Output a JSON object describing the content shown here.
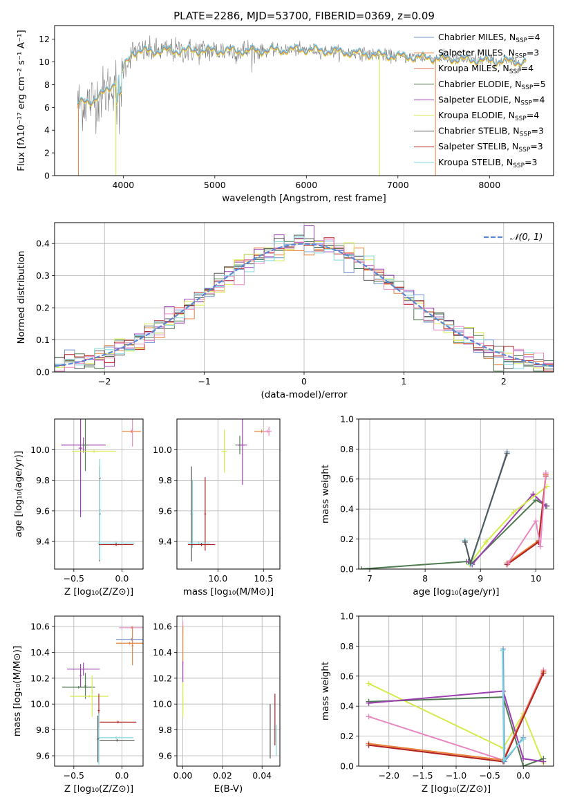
{
  "title": "PLATE=2286, MJD=53700, FIBERID=0369, z=0.09",
  "colors": {
    "Chabrier MILES": "#6f93cf",
    "Salpeter MILES": "#e8803a",
    "Kroupa MILES": "#e0785a",
    "Chabrier ELODIE": "#4f7a4f",
    "Salpeter ELODIE": "#9b3fb0",
    "Kroupa ELODIE": "#d6ea4a",
    "Chabrier STELIB": "#555555",
    "Salpeter STELIB": "#b22222",
    "Kroupa STELIB": "#7fd6dc",
    "Kroupa MILES weight": "#e887c0",
    "normal": "#5b86d6"
  },
  "chart_data": [
    {
      "name": "spectrum",
      "type": "line",
      "xlabel": "wavelength [Angstrom, rest frame]",
      "ylabel": "Flux [fλ10⁻¹⁷ erg cm⁻² s⁻¹ A⁻¹]",
      "xlim": [
        3250,
        8700
      ],
      "ylim": [
        0,
        13.2
      ],
      "xticks": [
        4000,
        5000,
        6000,
        7000,
        8000
      ],
      "yticks": [
        0,
        2,
        4,
        6,
        8,
        10,
        12
      ],
      "x_start": 3500,
      "x_end": 8400,
      "legend_position": "right",
      "legend": [
        {
          "label": "Chabrier MILES, N",
          "sub": "SSP",
          "suffix": "=4",
          "color": "Chabrier MILES"
        },
        {
          "label": "Salpeter MILES, N",
          "sub": "SSP",
          "suffix": "=3",
          "color": "Salpeter MILES"
        },
        {
          "label": "Kroupa MILES, N",
          "sub": "SSP",
          "suffix": "=4",
          "color": "Kroupa MILES"
        },
        {
          "label": "Chabrier ELODIE, N",
          "sub": "SSP",
          "suffix": "=5",
          "color": "Chabrier ELODIE"
        },
        {
          "label": "Salpeter ELODIE, N",
          "sub": "SSP",
          "suffix": "=4",
          "color": "Salpeter ELODIE"
        },
        {
          "label": "Kroupa ELODIE, N",
          "sub": "SSP",
          "suffix": "=4",
          "color": "Kroupa ELODIE"
        },
        {
          "label": "Chabrier STELIB, N",
          "sub": "SSP",
          "suffix": "=3",
          "color": "Chabrier STELIB"
        },
        {
          "label": "Salpeter STELIB, N",
          "sub": "SSP",
          "suffix": "=3",
          "color": "Salpeter STELIB"
        },
        {
          "label": "Kroupa STELIB, N",
          "sub": "SSP",
          "suffix": "=3",
          "color": "Kroupa STELIB"
        }
      ],
      "continuum": [
        [
          3500,
          6.3
        ],
        [
          3650,
          6.6
        ],
        [
          3800,
          7.3
        ],
        [
          3950,
          8.6
        ],
        [
          4100,
          10.9
        ],
        [
          4500,
          11.0
        ],
        [
          5000,
          11.0
        ],
        [
          5500,
          11.0
        ],
        [
          6000,
          11.1
        ],
        [
          6500,
          10.8
        ],
        [
          7000,
          10.5
        ],
        [
          7500,
          10.3
        ],
        [
          8000,
          10.1
        ],
        [
          8400,
          10.0
        ]
      ],
      "spikes": [
        {
          "x": 3510,
          "series": "Salpeter MILES"
        },
        {
          "x": 3920,
          "series": "Kroupa ELODIE"
        },
        {
          "x": 6800,
          "series": "Kroupa ELODIE"
        },
        {
          "x": 7410,
          "series": "Salpeter MILES"
        }
      ]
    },
    {
      "name": "residual-histogram",
      "type": "line",
      "xlabel": "(data-model)/error",
      "ylabel": "Normed distribution",
      "xlim": [
        -2.5,
        2.5
      ],
      "ylim": [
        0,
        0.465
      ],
      "xticks": [
        -2,
        -1,
        0,
        1,
        2
      ],
      "yticks": [
        0.0,
        0.1,
        0.2,
        0.3,
        0.4
      ],
      "grid": true,
      "legend_position": "top-right",
      "legend_label": "𝒩(0, 1)",
      "bin_width": 0.1,
      "series_colors": [
        "Chabrier MILES",
        "Salpeter MILES",
        "Chabrier ELODIE",
        "Salpeter ELODIE",
        "Kroupa ELODIE",
        "Chabrier STELIB",
        "Salpeter STELIB",
        "Kroupa STELIB",
        "Kroupa MILES weight"
      ]
    },
    {
      "name": "Z-age",
      "type": "scatter",
      "xlabel": "Z [log₁₀(Z/Z⊙)]",
      "ylabel": "age  [log₁₀(age/yr)]",
      "xlim": [
        -0.7,
        0.22
      ],
      "ylim": [
        9.22,
        10.2
      ],
      "xticks": [
        -0.5,
        0.0
      ],
      "yticks": [
        9.4,
        9.6,
        9.8,
        10.0
      ],
      "grid": true,
      "points": [
        {
          "x": -0.4,
          "xerr": 0.23,
          "y": 10.03,
          "yerr": 0.05,
          "color": "Salpeter ELODIE"
        },
        {
          "x": -0.38,
          "xerr": 0.03,
          "y": 10.03,
          "yerr": 0.17,
          "color": "Chabrier ELODIE"
        },
        {
          "x": -0.43,
          "xerr": 0.02,
          "y": 10.01,
          "yerr": 0.45,
          "color": "Salpeter ELODIE"
        },
        {
          "x": -0.29,
          "xerr": 0.23,
          "y": 9.99,
          "yerr": 0.01,
          "color": "Kroupa ELODIE"
        },
        {
          "x": 0.1,
          "xerr": 0.1,
          "y": 10.12,
          "yerr": 0.01,
          "color": "Salpeter MILES"
        },
        {
          "x": 0.11,
          "xerr": 0.01,
          "y": 10.12,
          "yerr": 0.1,
          "color": "Kroupa MILES weight"
        },
        {
          "x": -0.23,
          "xerr": 0.01,
          "y": 9.81,
          "yerr": 0.02,
          "color": "Salpeter STELIB"
        },
        {
          "x": -0.23,
          "xerr": 0.01,
          "y": 9.58,
          "yerr": 0.31,
          "color": "Chabrier STELIB"
        },
        {
          "x": -0.23,
          "xerr": 0.01,
          "y": 9.61,
          "yerr": 0.33,
          "color": "Kroupa STELIB"
        },
        {
          "x": -0.06,
          "xerr": 0.19,
          "y": 9.39,
          "yerr": 0.01,
          "color": "Kroupa STELIB"
        },
        {
          "x": -0.06,
          "xerr": 0.18,
          "y": 9.38,
          "yerr": 0.01,
          "color": "Salpeter STELIB"
        }
      ]
    },
    {
      "name": "mass-age",
      "type": "scatter",
      "xlabel": "mass [log₁₀(M/M⊙)]",
      "ylabel": "",
      "xlim": [
        9.55,
        10.68
      ],
      "ylim": [
        9.22,
        10.2
      ],
      "xticks": [
        10.0,
        10.5
      ],
      "yticks": [
        9.4,
        9.6,
        9.8,
        10.0
      ],
      "grid": true,
      "points": [
        {
          "x": 10.24,
          "xerr": 0.05,
          "y": 10.03,
          "yerr": 0.06,
          "color": "Chabrier ELODIE"
        },
        {
          "x": 10.27,
          "xerr": 0.05,
          "y": 10.03,
          "yerr": 0.26,
          "color": "Salpeter ELODIE"
        },
        {
          "x": 10.07,
          "xerr": 0.03,
          "y": 9.99,
          "yerr": 0.14,
          "color": "Kroupa ELODIE"
        },
        {
          "x": 10.48,
          "xerr": 0.08,
          "y": 10.12,
          "yerr": 0.01,
          "color": "Salpeter MILES"
        },
        {
          "x": 10.54,
          "xerr": 0.05,
          "y": 10.12,
          "yerr": 0.01,
          "color": "Kroupa MILES weight"
        },
        {
          "x": 10.56,
          "xerr": 0.01,
          "y": 10.12,
          "yerr": 0.03,
          "color": "Kroupa MILES weight"
        },
        {
          "x": 9.71,
          "xerr": 0.01,
          "y": 9.58,
          "yerr": 0.31,
          "color": "Chabrier STELIB"
        },
        {
          "x": 9.72,
          "xerr": 0.01,
          "y": 9.58,
          "yerr": 0.22,
          "color": "Kroupa STELIB"
        },
        {
          "x": 9.86,
          "xerr": 0.01,
          "y": 9.58,
          "yerr": 0.24,
          "color": "Salpeter STELIB"
        },
        {
          "x": 9.79,
          "xerr": 0.12,
          "y": 9.39,
          "yerr": 0.01,
          "color": "Kroupa STELIB"
        },
        {
          "x": 9.82,
          "xerr": 0.15,
          "y": 9.38,
          "yerr": 0.01,
          "color": "Salpeter STELIB"
        }
      ]
    },
    {
      "name": "age-weight",
      "type": "line",
      "xlabel": "age  [log₁₀(age/yr)]",
      "ylabel": "mass weight",
      "xlim": [
        6.8,
        10.32
      ],
      "ylim": [
        0,
        1.0
      ],
      "xticks": [
        7,
        8,
        9,
        10
      ],
      "yticks": [
        0.0,
        0.2,
        0.4,
        0.6,
        0.8,
        1.0
      ],
      "grid": true,
      "series": [
        {
          "color": "Chabrier ELODIE",
          "x": [
            6.85,
            8.75,
            8.85,
            10.0,
            10.2
          ],
          "y": [
            0.0,
            0.05,
            0.04,
            0.46,
            0.42
          ]
        },
        {
          "color": "Salpeter ELODIE",
          "x": [
            8.78,
            8.85,
            9.95,
            10.18
          ],
          "y": [
            0.05,
            0.03,
            0.5,
            0.42
          ]
        },
        {
          "color": "Kroupa ELODIE",
          "x": [
            8.8,
            9.1,
            9.6,
            10.2
          ],
          "y": [
            0.03,
            0.18,
            0.38,
            0.55
          ]
        },
        {
          "color": "Chabrier MILES",
          "x": [
            8.72,
            8.82,
            9.48
          ],
          "y": [
            0.19,
            0.03,
            0.78
          ]
        },
        {
          "color": "Kroupa STELIB",
          "x": [
            8.72,
            8.82,
            9.48
          ],
          "y": [
            0.19,
            0.03,
            0.77
          ]
        },
        {
          "color": "Chabrier STELIB",
          "x": [
            8.72,
            8.82,
            9.48
          ],
          "y": [
            0.18,
            0.04,
            0.77
          ]
        },
        {
          "color": "Salpeter MILES",
          "x": [
            9.48,
            10.05,
            10.18
          ],
          "y": [
            0.04,
            0.19,
            0.63
          ]
        },
        {
          "color": "Salpeter STELIB",
          "x": [
            9.48,
            10.05,
            10.18
          ],
          "y": [
            0.03,
            0.18,
            0.62
          ]
        },
        {
          "color": "Kroupa MILES weight",
          "x": [
            9.5,
            10.0,
            10.08,
            10.18
          ],
          "y": [
            0.04,
            0.32,
            0.15,
            0.64
          ]
        }
      ]
    },
    {
      "name": "Z-mass",
      "type": "scatter",
      "xlabel": "Z [log₁₀(Z/Z⊙)]",
      "ylabel": "mass [log₁₀(M/M⊙)]",
      "xlim": [
        -0.7,
        0.22
      ],
      "ylim": [
        9.52,
        10.68
      ],
      "xticks": [
        -0.5,
        0.0
      ],
      "yticks": [
        9.6,
        9.8,
        10.0,
        10.2,
        10.4,
        10.6
      ],
      "grid": true,
      "points": [
        {
          "x": -0.4,
          "xerr": 0.17,
          "y": 10.27,
          "yerr": 0.05,
          "color": "Salpeter ELODIE"
        },
        {
          "x": -0.43,
          "xerr": 0.01,
          "y": 10.22,
          "yerr": 0.09,
          "color": "Salpeter ELODIE"
        },
        {
          "x": -0.38,
          "xerr": 0.01,
          "y": 10.14,
          "yerr": 0.1,
          "color": "Chabrier ELODIE"
        },
        {
          "x": -0.45,
          "xerr": 0.17,
          "y": 10.13,
          "yerr": 0.01,
          "color": "Chabrier ELODIE"
        },
        {
          "x": -0.34,
          "xerr": 0.2,
          "y": 10.06,
          "yerr": 0.01,
          "color": "Kroupa ELODIE"
        },
        {
          "x": -0.31,
          "xerr": 0.01,
          "y": 10.06,
          "yerr": 0.16,
          "color": "Kroupa ELODIE"
        },
        {
          "x": 0.1,
          "xerr": 0.13,
          "y": 10.59,
          "yerr": 0.01,
          "color": "Kroupa MILES weight"
        },
        {
          "x": 0.1,
          "xerr": 0.16,
          "y": 10.5,
          "yerr": 0.01,
          "color": "Chabrier MILES"
        },
        {
          "x": 0.08,
          "xerr": 0.14,
          "y": 10.47,
          "yerr": 0.01,
          "color": "Salpeter MILES"
        },
        {
          "x": 0.11,
          "xerr": 0.01,
          "y": 10.45,
          "yerr": 0.15,
          "color": "Salpeter MILES"
        },
        {
          "x": -0.24,
          "xerr": 0.01,
          "y": 9.95,
          "yerr": 0.13,
          "color": "Salpeter STELIB"
        },
        {
          "x": -0.04,
          "xerr": 0.19,
          "y": 9.86,
          "yerr": 0.01,
          "color": "Salpeter STELIB"
        },
        {
          "x": -0.05,
          "xerr": 0.18,
          "y": 9.72,
          "yerr": 0.01,
          "color": "Chabrier STELIB"
        },
        {
          "x": -0.06,
          "xerr": 0.18,
          "y": 9.74,
          "yerr": 0.01,
          "color": "Kroupa STELIB"
        },
        {
          "x": -0.24,
          "xerr": 0.01,
          "y": 9.73,
          "yerr": 0.2,
          "color": "Kroupa STELIB"
        },
        {
          "x": -0.25,
          "xerr": 0.01,
          "y": 9.73,
          "yerr": 0.18,
          "color": "Chabrier STELIB"
        }
      ]
    },
    {
      "name": "EBV-mass",
      "type": "scatter",
      "xlabel": "E(B-V)",
      "ylabel": "",
      "xlim": [
        -0.003,
        0.049
      ],
      "ylim": [
        9.52,
        10.68
      ],
      "xticks": [
        0.0,
        0.02,
        0.04
      ],
      "yticks": [
        9.6,
        9.8,
        10.0,
        10.2,
        10.4,
        10.6
      ],
      "grid": true,
      "points": [
        {
          "x": 0.0,
          "xerr": 0.0,
          "y": 10.59,
          "yerr": 0.05,
          "color": "Kroupa MILES weight"
        },
        {
          "x": 0.0,
          "xerr": 0.0,
          "y": 10.45,
          "yerr": 0.15,
          "color": "Salpeter MILES"
        },
        {
          "x": 0.0,
          "xerr": 0.0,
          "y": 10.25,
          "yerr": 0.08,
          "color": "Salpeter ELODIE"
        },
        {
          "x": 0.0,
          "xerr": 0.0,
          "y": 10.05,
          "yerr": 0.12,
          "color": "Kroupa ELODIE"
        },
        {
          "x": 0.0,
          "xerr": 0.0,
          "y": 9.98,
          "yerr": 0.08,
          "color": "Kroupa ELODIE"
        },
        {
          "x": 0.0441,
          "xerr": 0.0,
          "y": 9.79,
          "yerr": 0.21,
          "color": "Chabrier STELIB"
        },
        {
          "x": 0.0465,
          "xerr": 0.0,
          "y": 9.88,
          "yerr": 0.2,
          "color": "Salpeter STELIB"
        },
        {
          "x": 0.0472,
          "xerr": 0.0,
          "y": 9.72,
          "yerr": 0.12,
          "color": "Kroupa STELIB"
        }
      ]
    },
    {
      "name": "Z-weight",
      "type": "line",
      "xlabel": "Z [log₁₀(Z/Z⊙)]",
      "ylabel": "mass weight",
      "xlim": [
        -2.45,
        0.45
      ],
      "ylim": [
        0,
        1.0
      ],
      "xticks": [
        -2.0,
        -1.5,
        -1.0,
        -0.5,
        0.0
      ],
      "yticks": [
        0.0,
        0.2,
        0.4,
        0.6,
        0.8,
        1.0
      ],
      "grid": true,
      "series": [
        {
          "color": "Kroupa ELODIE",
          "x": [
            -2.3,
            -0.3,
            0.0,
            0.3
          ],
          "y": [
            0.55,
            0.12,
            0.35,
            0.02
          ]
        },
        {
          "color": "Chabrier ELODIE",
          "x": [
            -2.3,
            -0.3,
            0.0,
            0.3
          ],
          "y": [
            0.43,
            0.46,
            0.0,
            0.05
          ]
        },
        {
          "color": "Salpeter ELODIE",
          "x": [
            -2.3,
            -0.3,
            0.0,
            0.3
          ],
          "y": [
            0.42,
            0.5,
            0.05,
            0.03
          ]
        },
        {
          "color": "Kroupa MILES weight",
          "x": [
            -2.3,
            -0.3,
            0.3
          ],
          "y": [
            0.33,
            0.04,
            0.64
          ]
        },
        {
          "color": "Salpeter MILES",
          "x": [
            -2.3,
            -0.3,
            0.3
          ],
          "y": [
            0.15,
            0.04,
            0.63
          ]
        },
        {
          "color": "Salpeter STELIB",
          "x": [
            -2.3,
            -0.3,
            0.3
          ],
          "y": [
            0.14,
            0.03,
            0.62
          ]
        },
        {
          "color": "Chabrier MILES",
          "x": [
            -0.3,
            -0.28,
            0.0
          ],
          "y": [
            0.78,
            0.03,
            0.19
          ]
        },
        {
          "color": "Kroupa STELIB",
          "x": [
            -0.31,
            -0.29,
            0.0
          ],
          "y": [
            0.77,
            0.04,
            0.18
          ]
        }
      ]
    }
  ]
}
